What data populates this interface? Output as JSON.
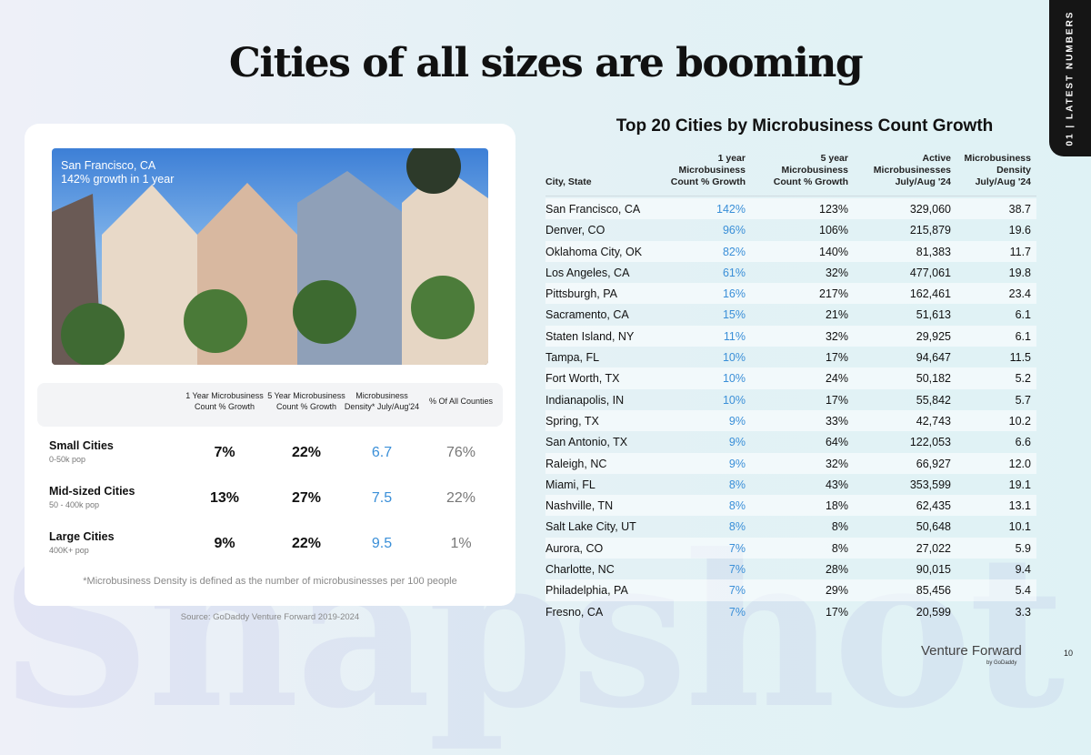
{
  "title": "Cities of all sizes are booming",
  "section_tab": "01 | LATEST NUMBERS",
  "watermark": "Snapshot",
  "photo": {
    "caption_city": "San Francisco, CA",
    "caption_growth": "142% growth in 1 year"
  },
  "size_table": {
    "headers": [
      "1 Year Microbusiness Count % Growth",
      "5 Year Microbusiness Count % Growth",
      "Microbusiness Density* July/Aug'24",
      "% Of All Counties"
    ],
    "rows": [
      {
        "name": "Small Cities",
        "pop": "0-50k pop",
        "v": [
          "7%",
          "22%",
          "6.7",
          "76%"
        ]
      },
      {
        "name": "Mid-sized Cities",
        "pop": "50 - 400k pop",
        "v": [
          "13%",
          "27%",
          "7.5",
          "22%"
        ]
      },
      {
        "name": "Large Cities",
        "pop": "400K+ pop",
        "v": [
          "9%",
          "22%",
          "9.5",
          "1%"
        ]
      }
    ],
    "note": "*Microbusiness Density is defined as the number of microbusinesses per 100 people"
  },
  "source": "Source: GoDaddy Venture Forward 2019-2024",
  "city_table": {
    "title": "Top 20 Cities by Microbusiness Count Growth",
    "headers": [
      "City, State",
      "1 year Microbusiness Count % Growth",
      "5 year Microbusiness Count % Growth",
      "Active Microbusinesses July/Aug '24",
      "Microbusiness Density July/Aug '24"
    ],
    "rows": [
      [
        "San Francisco, CA",
        "142%",
        "123%",
        "329,060",
        "38.7"
      ],
      [
        "Denver, CO",
        "96%",
        "106%",
        "215,879",
        "19.6"
      ],
      [
        "Oklahoma City, OK",
        "82%",
        "140%",
        "81,383",
        "11.7"
      ],
      [
        "Los Angeles, CA",
        "61%",
        "32%",
        "477,061",
        "19.8"
      ],
      [
        "Pittsburgh, PA",
        "16%",
        "217%",
        "162,461",
        "23.4"
      ],
      [
        "Sacramento, CA",
        "15%",
        "21%",
        "51,613",
        "6.1"
      ],
      [
        "Staten Island, NY",
        "11%",
        "32%",
        "29,925",
        "6.1"
      ],
      [
        "Tampa, FL",
        "10%",
        "17%",
        "94,647",
        "11.5"
      ],
      [
        "Fort Worth, TX",
        "10%",
        "24%",
        "50,182",
        "5.2"
      ],
      [
        "Indianapolis, IN",
        "10%",
        "17%",
        "55,842",
        "5.7"
      ],
      [
        "Spring, TX",
        "9%",
        "33%",
        "42,743",
        "10.2"
      ],
      [
        "San Antonio, TX",
        "9%",
        "64%",
        "122,053",
        "6.6"
      ],
      [
        "Raleigh, NC",
        "9%",
        "32%",
        "66,927",
        "12.0"
      ],
      [
        "Miami, FL",
        "8%",
        "43%",
        "353,599",
        "19.1"
      ],
      [
        "Nashville, TN",
        "8%",
        "18%",
        "62,435",
        "13.1"
      ],
      [
        "Salt Lake City, UT",
        "8%",
        "8%",
        "50,648",
        "10.1"
      ],
      [
        "Aurora, CO",
        "7%",
        "8%",
        "27,022",
        "5.9"
      ],
      [
        "Charlotte, NC",
        "7%",
        "28%",
        "90,015",
        "9.4"
      ],
      [
        "Philadelphia, PA",
        "7%",
        "29%",
        "85,456",
        "5.4"
      ],
      [
        "Fresno, CA",
        "7%",
        "17%",
        "20,599",
        "3.3"
      ]
    ]
  },
  "footer": {
    "brand": "Venture Forward",
    "by": "by GoDaddy",
    "page": "10"
  }
}
